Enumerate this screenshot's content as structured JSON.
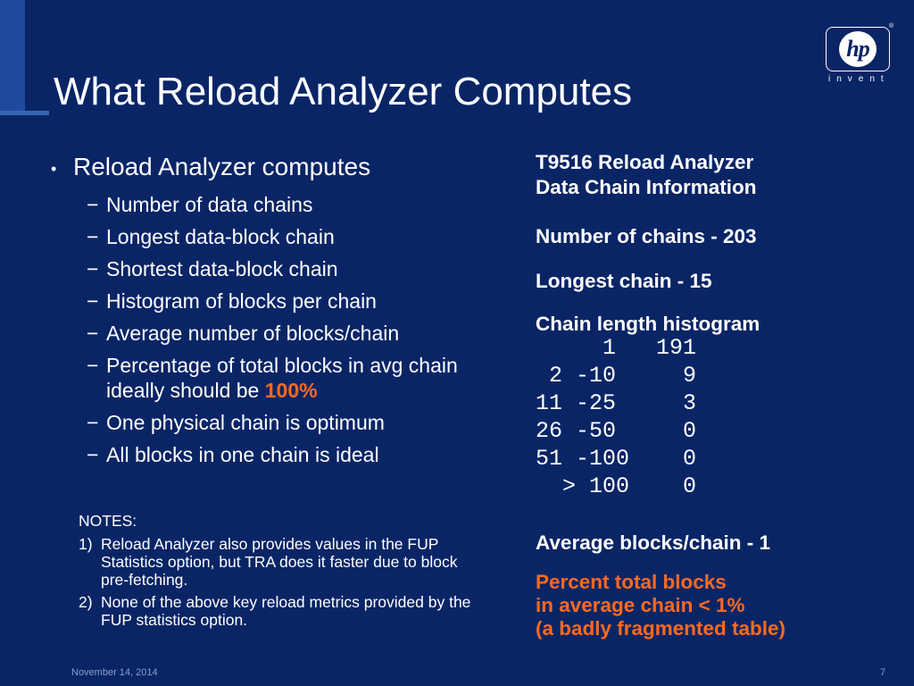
{
  "slide": {
    "title": "What Reload Analyzer Computes",
    "footer_date": "November 14, 2014",
    "page_number": "7"
  },
  "logo": {
    "mark": "hp",
    "registered": "®",
    "tagline": "invent"
  },
  "left": {
    "bullet": "Reload Analyzer computes",
    "items": [
      "Number of data chains",
      "Longest data-block chain",
      "Shortest data-block chain",
      "Histogram of blocks per chain",
      "Average number of blocks/chain",
      "Percentage of total blocks in avg chain ideally should be",
      "One physical chain is optimum",
      "All blocks in one chain is ideal"
    ],
    "highlight": "100%"
  },
  "notes": {
    "heading": "NOTES:",
    "items": [
      {
        "num": "1)",
        "text": "Reload Analyzer also provides values in the FUP Statistics option, but TRA does it faster due to block pre-fetching."
      },
      {
        "num": "2)",
        "text": "None of the above key reload metrics provided by the FUP statistics option."
      }
    ]
  },
  "right": {
    "heading_line1": "T9516 Reload Analyzer",
    "heading_line2": "Data Chain Information",
    "chains": "Number of chains - 203",
    "longest": "Longest chain - 15",
    "hist_title": "Chain length histogram",
    "histogram": [
      "     1   191",
      " 2 -10     9",
      "11 -25     3",
      "26 -50     0",
      "51 -100    0",
      "  > 100    0"
    ],
    "average": "Average blocks/chain - 1",
    "percent_lines": [
      "Percent total blocks",
      "in average chain < 1%",
      "(a badly fragmented table)"
    ]
  },
  "colors": {
    "background": "#0a2566",
    "highlight": "#ff6a1f"
  }
}
